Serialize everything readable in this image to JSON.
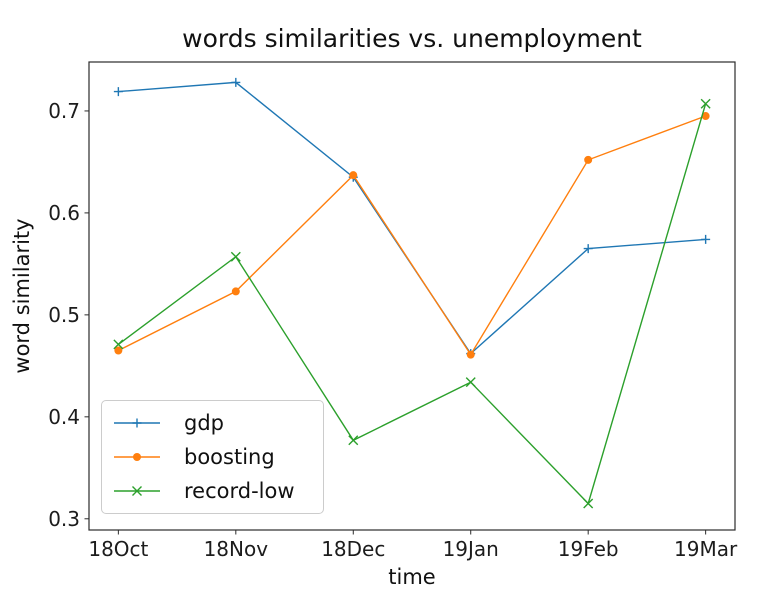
{
  "chart_data": {
    "type": "line",
    "title": "words similarities vs. unemployment",
    "xlabel": "time",
    "ylabel": "word similarity",
    "categories": [
      "18Oct",
      "18Nov",
      "18Dec",
      "19Jan",
      "19Feb",
      "19Mar"
    ],
    "series": [
      {
        "name": "gdp",
        "color": "#1f77b4",
        "marker": "plus",
        "values": [
          0.719,
          0.728,
          0.635,
          0.462,
          0.565,
          0.574
        ]
      },
      {
        "name": "boosting",
        "color": "#ff7f0e",
        "marker": "circle",
        "values": [
          0.465,
          0.523,
          0.637,
          0.461,
          0.652,
          0.695
        ]
      },
      {
        "name": "record-low",
        "color": "#2ca02c",
        "marker": "x",
        "values": [
          0.471,
          0.557,
          0.377,
          0.434,
          0.315,
          0.707
        ]
      }
    ],
    "ylim": [
      0.289,
      0.748
    ],
    "x_range": [
      -0.25,
      5.25
    ],
    "yticks": [
      0.3,
      0.4,
      0.5,
      0.6,
      0.7
    ],
    "ytick_labels": [
      "0.3",
      "0.4",
      "0.5",
      "0.6",
      "0.7"
    ],
    "grid": false,
    "legend_position": "lower-left",
    "axis_color": "#2b2b2b"
  }
}
